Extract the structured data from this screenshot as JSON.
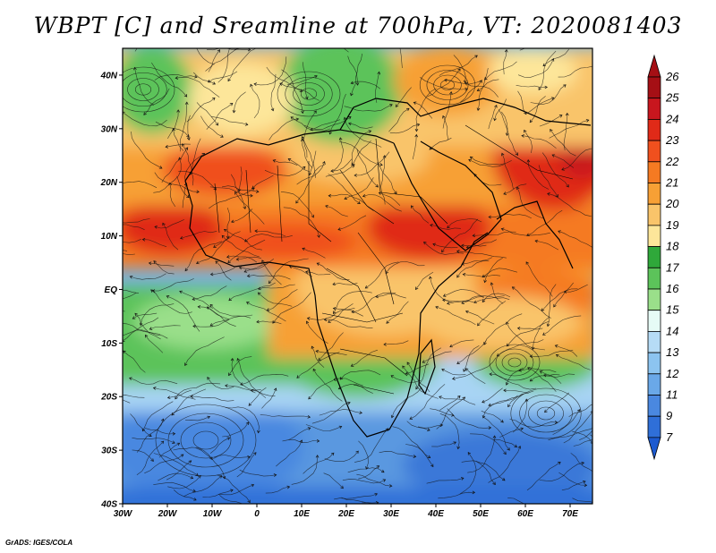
{
  "title": "WBPT [C] and Sreamline at 700hPa, VT: 2020081403",
  "credit": "GrADS: IGES/COLA",
  "map": {
    "lon_range": [
      -30,
      75
    ],
    "lat_range": [
      -40,
      45
    ],
    "lat_ticks": [
      {
        "value": 40,
        "label": "40N"
      },
      {
        "value": 30,
        "label": "30N"
      },
      {
        "value": 20,
        "label": "20N"
      },
      {
        "value": 10,
        "label": "10N"
      },
      {
        "value": 0,
        "label": "EQ"
      },
      {
        "value": -10,
        "label": "10S"
      },
      {
        "value": -20,
        "label": "20S"
      },
      {
        "value": -30,
        "label": "30S"
      },
      {
        "value": -40,
        "label": "40S"
      }
    ],
    "lon_ticks": [
      {
        "value": -30,
        "label": "30W"
      },
      {
        "value": -20,
        "label": "20W"
      },
      {
        "value": -10,
        "label": "10W"
      },
      {
        "value": 0,
        "label": "0"
      },
      {
        "value": 10,
        "label": "10E"
      },
      {
        "value": 20,
        "label": "20E"
      },
      {
        "value": 30,
        "label": "30E"
      },
      {
        "value": 40,
        "label": "40E"
      },
      {
        "value": 50,
        "label": "50E"
      },
      {
        "value": 60,
        "label": "60E"
      },
      {
        "value": 70,
        "label": "70E"
      }
    ]
  },
  "colorbar": {
    "labels": [
      "26",
      "25",
      "24",
      "23",
      "22",
      "21",
      "20",
      "19",
      "18",
      "17",
      "16",
      "15",
      "14",
      "13",
      "12",
      "11",
      "9",
      "7"
    ],
    "colors": [
      "#a50f15",
      "#c8161e",
      "#e02a18",
      "#f0501e",
      "#f57a22",
      "#f7a035",
      "#f9c46a",
      "#fde69a",
      "#2fa83a",
      "#5cc35a",
      "#9adf8a",
      "#e6fbf6",
      "#b6dcf6",
      "#8cc4f0",
      "#6aa8e8",
      "#4a88e0",
      "#2f6fd8",
      "#1c5ad0"
    ]
  }
}
